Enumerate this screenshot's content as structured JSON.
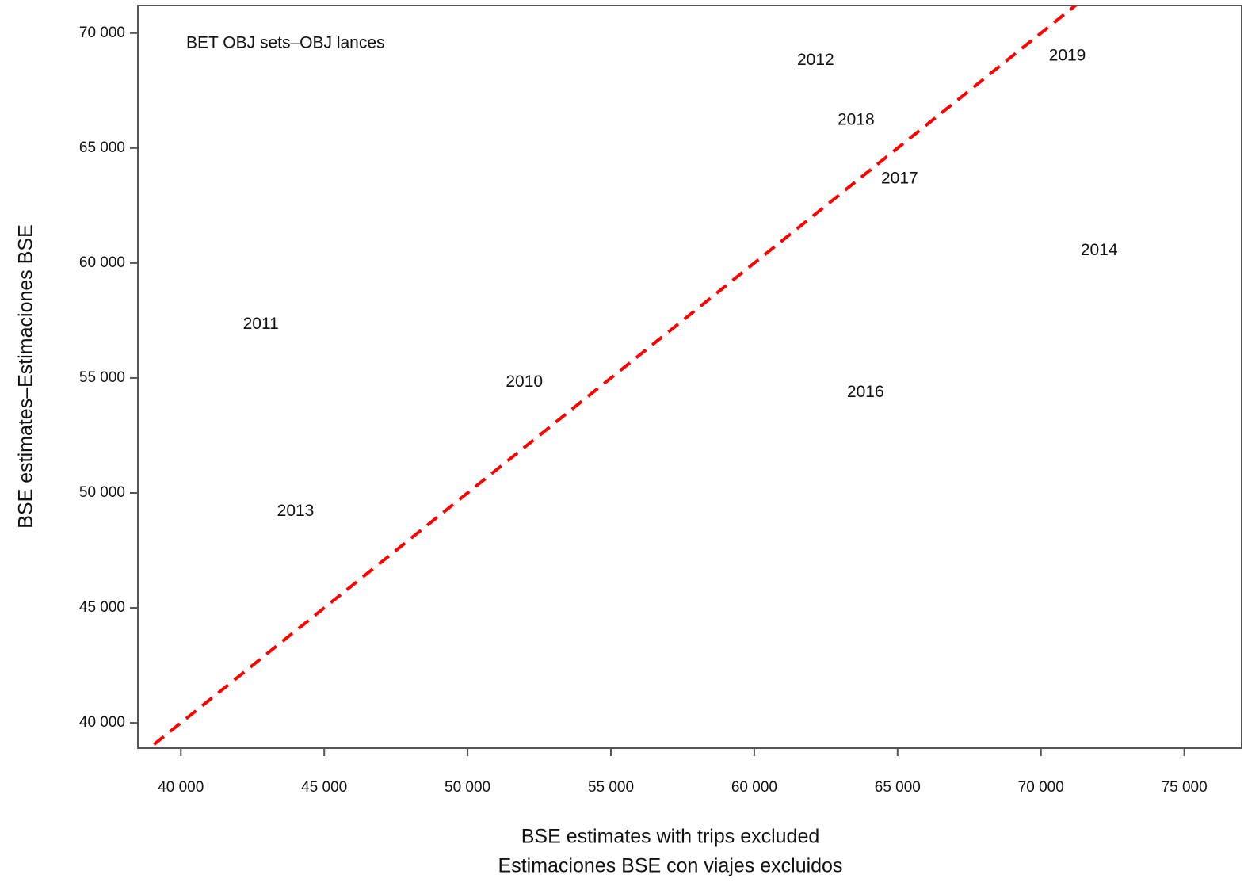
{
  "chart_data": {
    "type": "scatter",
    "annotation": "BET OBJ sets–OBJ lances",
    "xlabel": [
      "BSE estimates with trips excluded",
      "Estimaciones BSE con viajes excluidos"
    ],
    "ylabel": "BSE estimates–Estimaciones BSE",
    "labels": [
      "2012",
      "2019",
      "2018",
      "2017",
      "2014",
      "2011",
      "2010",
      "2016",
      "2013"
    ],
    "x": [
      62140,
      70920,
      63550,
      65070,
      72030,
      42790,
      51980,
      63880,
      44000
    ],
    "values": [
      68800,
      69000,
      66210,
      63660,
      60530,
      57330,
      54810,
      54360,
      49190
    ],
    "xlim": [
      38500,
      77000
    ],
    "ylim": [
      38900,
      71200
    ],
    "xticks": [
      {
        "value": 40000,
        "label": "40 000"
      },
      {
        "value": 45000,
        "label": "45 000"
      },
      {
        "value": 50000,
        "label": "50 000"
      },
      {
        "value": 55000,
        "label": "55 000"
      },
      {
        "value": 60000,
        "label": "60 000"
      },
      {
        "value": 65000,
        "label": "65 000"
      },
      {
        "value": 70000,
        "label": "70 000"
      },
      {
        "value": 75000,
        "label": "75 000"
      }
    ],
    "yticks": [
      {
        "value": 40000,
        "label": "40 000"
      },
      {
        "value": 45000,
        "label": "45 000"
      },
      {
        "value": 50000,
        "label": "50 000"
      },
      {
        "value": 55000,
        "label": "55 000"
      },
      {
        "value": 60000,
        "label": "60 000"
      },
      {
        "value": 65000,
        "label": "65 000"
      },
      {
        "value": 70000,
        "label": "70 000"
      }
    ],
    "reference_line": {
      "slope": 1,
      "intercept": 0,
      "color": "#ff0000"
    }
  }
}
